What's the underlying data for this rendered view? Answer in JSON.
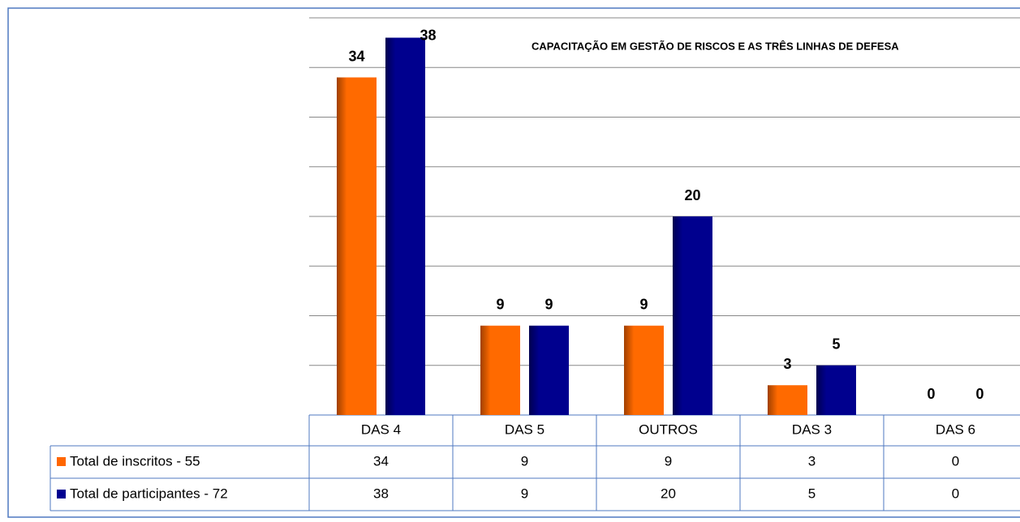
{
  "chart_data": {
    "type": "bar",
    "title": "CAPACITAÇÃO  EM GESTÃO DE RISCOS E AS TRÊS LINHAS DE DEFESA",
    "categories": [
      "DAS 4",
      "DAS 5",
      "OUTROS",
      "DAS 3",
      "DAS 6"
    ],
    "series": [
      {
        "name": "Total de inscritos - 55",
        "color": "#ff6600",
        "values": [
          34,
          9,
          9,
          3,
          0
        ]
      },
      {
        "name": "Total de participantes - 72",
        "color": "#000090",
        "values": [
          38,
          9,
          20,
          5,
          0
        ]
      }
    ],
    "ylim": [
      0,
      40
    ],
    "yticks": [
      0,
      5,
      10,
      15,
      20,
      25,
      30,
      35,
      40
    ],
    "grid": true
  }
}
